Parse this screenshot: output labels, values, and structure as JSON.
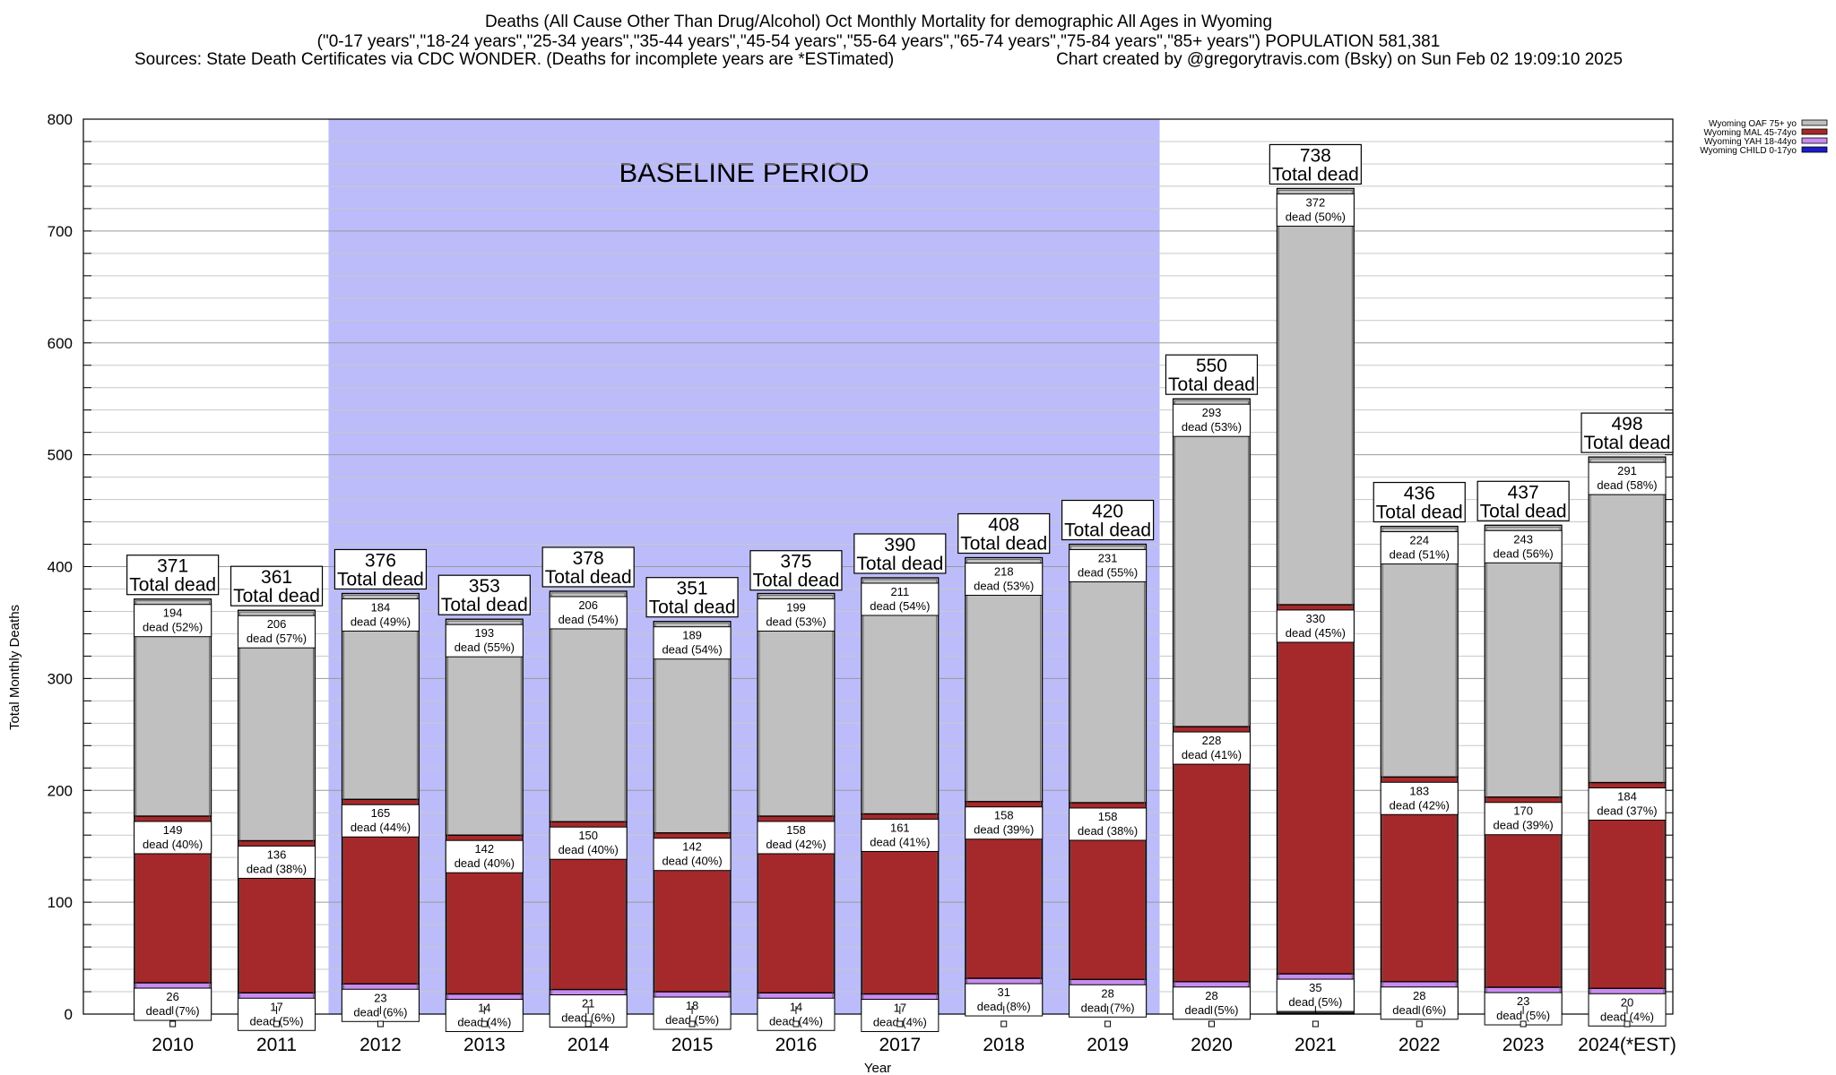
{
  "chart_data": {
    "type": "bar",
    "stacked": true,
    "title_lines": [
      "Deaths (All Cause Other Than Drug/Alcohol) Oct Monthly Mortality for demographic All Ages in Wyoming",
      "(\"0-17 years\",\"18-24 years\",\"25-34 years\",\"35-44 years\",\"45-54 years\",\"55-64 years\",\"65-74 years\",\"75-84 years\",\"85+ years\") POPULATION 581,381"
    ],
    "sources": "Sources: State Death Certificates via CDC WONDER. (Deaths for incomplete years are *ESTimated)",
    "credit": "Chart created by @gregorytravis.com (Bsky) on Sun Feb 02 19:09:10 2025",
    "xlabel": "Year",
    "ylabel": "Total Monthly Deaths",
    "ylim": [
      0,
      800
    ],
    "yticks": [
      "0",
      "100",
      "200",
      "300",
      "400",
      "500",
      "600",
      "700",
      "800"
    ],
    "grid": true,
    "baseline": {
      "label": "BASELINE PERIOD",
      "from": "2012",
      "to": "2019"
    },
    "total_suffix": "Total dead",
    "categories": [
      "2010",
      "2011",
      "2012",
      "2013",
      "2014",
      "2015",
      "2016",
      "2017",
      "2018",
      "2019",
      "2020",
      "2021",
      "2022",
      "2023",
      "2024(*EST)"
    ],
    "totals": [
      371,
      361,
      376,
      353,
      378,
      351,
      375,
      390,
      408,
      420,
      550,
      738,
      436,
      437,
      498
    ],
    "series": [
      {
        "name": "Wyoming CHILD 0-17yo",
        "color": "#1c1cc8",
        "values": [
          2,
          2,
          4,
          4,
          1,
          2,
          5,
          1,
          1,
          3,
          1,
          1,
          1,
          1,
          3
        ]
      },
      {
        "name": "Wyoming YAH 18-44yo",
        "color": "#c88cf0",
        "values": [
          26,
          17,
          23,
          14,
          21,
          18,
          14,
          17,
          31,
          28,
          28,
          35,
          28,
          23,
          20
        ],
        "labels": [
          "dead (7%)",
          "dead (5%)",
          "dead (6%)",
          "dead (4%)",
          "dead (6%)",
          "dead (5%)",
          "dead (4%)",
          "dead (4%)",
          "dead (8%)",
          "dead (7%)",
          "dead (5%)",
          "dead (5%)",
          "dead (6%)",
          "dead (5%)",
          "dead (4%)"
        ]
      },
      {
        "name": "Wyoming MAL 45-74yo",
        "color": "#a5282a",
        "values": [
          149,
          136,
          165,
          142,
          150,
          142,
          158,
          161,
          158,
          158,
          228,
          330,
          183,
          170,
          184
        ],
        "labels": [
          "dead (40%)",
          "dead (38%)",
          "dead (44%)",
          "dead (40%)",
          "dead (40%)",
          "dead (40%)",
          "dead (42%)",
          "dead (41%)",
          "dead (39%)",
          "dead (38%)",
          "dead (41%)",
          "dead (45%)",
          "dead (42%)",
          "dead (39%)",
          "dead (37%)"
        ]
      },
      {
        "name": "Wyoming OAF 75+ yo",
        "color": "#c0c0c0",
        "values": [
          194,
          206,
          184,
          193,
          206,
          189,
          199,
          211,
          218,
          231,
          293,
          372,
          224,
          243,
          291
        ],
        "labels": [
          "dead (52%)",
          "dead (57%)",
          "dead (49%)",
          "dead (55%)",
          "dead (54%)",
          "dead (54%)",
          "dead (53%)",
          "dead (54%)",
          "dead (53%)",
          "dead (55%)",
          "dead (53%)",
          "dead (50%)",
          "dead (51%)",
          "dead (56%)",
          "dead (58%)"
        ]
      }
    ],
    "legend": [
      "Wyoming OAF 75+ yo",
      "Wyoming MAL 45-74yo",
      "Wyoming YAH 18-44yo",
      "Wyoming CHILD 0-17yo"
    ],
    "legend_position": "top-right"
  }
}
